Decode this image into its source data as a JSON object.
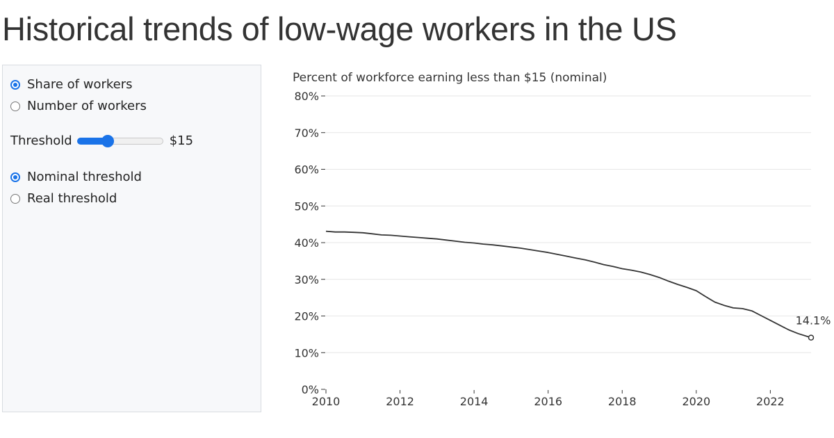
{
  "page": {
    "title": "Historical trends of low-wage workers in the US"
  },
  "controls": {
    "measure_options": [
      {
        "label": "Share of workers",
        "selected": true
      },
      {
        "label": "Number of workers",
        "selected": false
      }
    ],
    "threshold": {
      "label": "Threshold",
      "value_label": "$15",
      "value": 15,
      "position_fraction": 0.36
    },
    "threshold_type_options": [
      {
        "label": "Nominal threshold",
        "selected": true
      },
      {
        "label": "Real threshold",
        "selected": false
      }
    ],
    "accent_color": "#1a73e8"
  },
  "chart_data": {
    "type": "line",
    "title": "Percent of workforce earning less than $15 (nominal)",
    "xlabel": "",
    "ylabel": "",
    "xlim": [
      2010,
      2023.1
    ],
    "ylim": [
      0,
      80
    ],
    "x_ticks": [
      2010,
      2012,
      2014,
      2016,
      2018,
      2020,
      2022
    ],
    "x_tick_labels": [
      "2010",
      "2012",
      "2014",
      "2016",
      "2018",
      "2020",
      "2022"
    ],
    "y_ticks": [
      0,
      10,
      20,
      30,
      40,
      50,
      60,
      70,
      80
    ],
    "y_tick_labels": [
      "0%",
      "10%",
      "20%",
      "30%",
      "40%",
      "50%",
      "60%",
      "70%",
      "80%"
    ],
    "grid": true,
    "line_color": "#333333",
    "series": [
      {
        "x": [
          2010.0,
          2010.25,
          2010.5,
          2010.75,
          2011.0,
          2011.25,
          2011.5,
          2011.75,
          2012.0,
          2012.25,
          2012.5,
          2012.75,
          2013.0,
          2013.25,
          2013.5,
          2013.75,
          2014.0,
          2014.25,
          2014.5,
          2014.75,
          2015.0,
          2015.25,
          2015.5,
          2015.75,
          2016.0,
          2016.25,
          2016.5,
          2016.75,
          2017.0,
          2017.25,
          2017.5,
          2017.75,
          2018.0,
          2018.25,
          2018.5,
          2018.75,
          2019.0,
          2019.25,
          2019.5,
          2019.75,
          2020.0,
          2020.25,
          2020.5,
          2020.75,
          2021.0,
          2021.25,
          2021.5,
          2021.75,
          2022.0,
          2022.25,
          2022.5,
          2022.75,
          2023.1
        ],
        "y": [
          43.1,
          42.9,
          42.9,
          42.8,
          42.7,
          42.4,
          42.1,
          42.0,
          41.8,
          41.6,
          41.4,
          41.2,
          41.0,
          40.7,
          40.4,
          40.1,
          39.9,
          39.6,
          39.4,
          39.1,
          38.8,
          38.5,
          38.1,
          37.7,
          37.3,
          36.8,
          36.3,
          35.8,
          35.3,
          34.7,
          34.0,
          33.5,
          32.9,
          32.5,
          32.0,
          31.3,
          30.5,
          29.5,
          28.6,
          27.8,
          26.9,
          25.3,
          23.8,
          22.9,
          22.2,
          22.0,
          21.4,
          20.1,
          18.8,
          17.5,
          16.2,
          15.2,
          14.1
        ]
      }
    ],
    "end_label": "14.1%",
    "end_value": 14.1
  }
}
